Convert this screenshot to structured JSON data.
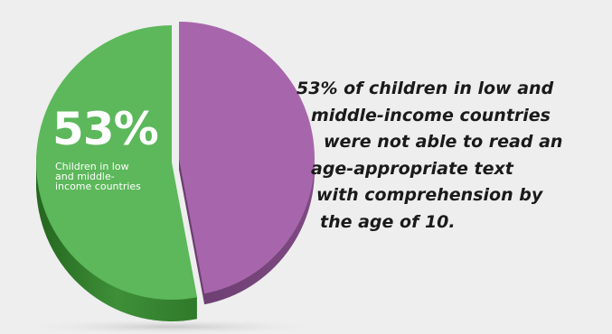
{
  "chart_data": {
    "type": "pie",
    "style": "3d",
    "slices": [
      {
        "label": "Children in low and middle-income countries",
        "value": 53,
        "color": "#5cb85a"
      },
      {
        "label": "",
        "value": 47,
        "color": "#a766ab"
      }
    ],
    "data_label": "53%",
    "slice_caption": [
      "Children in low",
      "and middle-",
      "income countries"
    ]
  },
  "statement_lines": [
    "53% of children in low and",
    "middle-income countries",
    "were not able to read an",
    "age-appropriate text",
    "with comprehension by",
    "the age of 10."
  ],
  "colors": {
    "background": "#eeeeee",
    "text": "#1a1a1a",
    "shadow": "#cfcfcf"
  }
}
